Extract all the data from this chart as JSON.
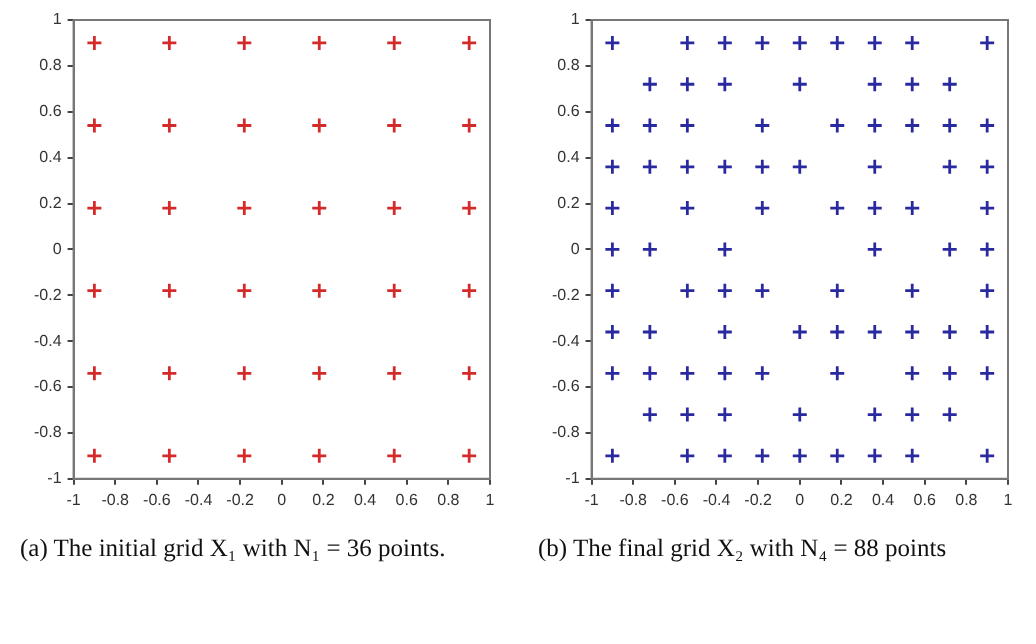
{
  "chart_data": [
    {
      "type": "scatter",
      "annotations": [
        "(a) The initial grid X₁ with N₁ = 36 points."
      ],
      "marker": "cross",
      "grid": false,
      "xlim": [
        -1,
        1
      ],
      "ylim": [
        -1,
        1
      ],
      "xticks": [
        -1,
        -0.8,
        -0.6,
        -0.4,
        -0.2,
        0,
        0.2,
        0.4,
        0.6,
        0.8,
        1
      ],
      "yticks": [
        -1,
        -0.8,
        -0.6,
        -0.4,
        -0.2,
        0,
        0.2,
        0.4,
        0.6,
        0.8,
        1
      ],
      "series": [
        {
          "color": "#d42a2a",
          "x": [
            -0.9,
            -0.54,
            -0.18,
            0.18,
            0.54,
            0.9,
            -0.9,
            -0.54,
            -0.18,
            0.18,
            0.54,
            0.9,
            -0.9,
            -0.54,
            -0.18,
            0.18,
            0.54,
            0.9,
            -0.9,
            -0.54,
            -0.18,
            0.18,
            0.54,
            0.9,
            -0.9,
            -0.54,
            -0.18,
            0.18,
            0.54,
            0.9,
            -0.9,
            -0.54,
            -0.18,
            0.18,
            0.54,
            0.9
          ],
          "values": [
            0.9,
            0.9,
            0.9,
            0.9,
            0.9,
            0.9,
            0.54,
            0.54,
            0.54,
            0.54,
            0.54,
            0.54,
            0.18,
            0.18,
            0.18,
            0.18,
            0.18,
            0.18,
            -0.18,
            -0.18,
            -0.18,
            -0.18,
            -0.18,
            -0.18,
            -0.54,
            -0.54,
            -0.54,
            -0.54,
            -0.54,
            -0.54,
            -0.9,
            -0.9,
            -0.9,
            -0.9,
            -0.9,
            -0.9
          ]
        }
      ]
    },
    {
      "type": "scatter",
      "annotations": [
        "(b) The final grid X₂ with N₄ = 88 points"
      ],
      "marker": "cross",
      "grid": false,
      "xlim": [
        -1,
        1
      ],
      "ylim": [
        -1,
        1
      ],
      "xticks": [
        -1,
        -0.8,
        -0.6,
        -0.4,
        -0.2,
        0,
        0.2,
        0.4,
        0.6,
        0.8,
        1
      ],
      "yticks": [
        -1,
        -0.8,
        -0.6,
        -0.4,
        -0.2,
        0,
        0.2,
        0.4,
        0.6,
        0.8,
        1
      ],
      "series": [
        {
          "color": "#2a2aa0",
          "x": [
            -0.9,
            -0.54,
            -0.36,
            -0.18,
            0,
            0.18,
            0.36,
            0.54,
            0.9,
            -0.72,
            -0.54,
            -0.36,
            0,
            0.36,
            0.54,
            0.72,
            -0.9,
            -0.72,
            -0.54,
            -0.18,
            0.18,
            0.36,
            0.54,
            0.72,
            0.9,
            -0.9,
            -0.72,
            -0.54,
            -0.36,
            -0.18,
            0,
            0.36,
            0.72,
            0.9,
            -0.9,
            -0.54,
            -0.18,
            0.18,
            0.36,
            0.54,
            0.9,
            -0.9,
            -0.72,
            -0.36,
            0.36,
            0.72,
            0.9,
            -0.9,
            -0.54,
            -0.36,
            -0.18,
            0.18,
            0.54,
            0.9,
            -0.9,
            -0.72,
            -0.36,
            0,
            0.18,
            0.36,
            0.54,
            0.72,
            0.9,
            -0.9,
            -0.72,
            -0.54,
            -0.36,
            -0.18,
            0.18,
            0.54,
            0.72,
            0.9,
            -0.72,
            -0.54,
            -0.36,
            0,
            0.36,
            0.54,
            0.72,
            -0.9,
            -0.54,
            -0.36,
            -0.18,
            0,
            0.18,
            0.36,
            0.54,
            0.9
          ],
          "values": [
            0.9,
            0.9,
            0.9,
            0.9,
            0.9,
            0.9,
            0.9,
            0.9,
            0.9,
            0.72,
            0.72,
            0.72,
            0.72,
            0.72,
            0.72,
            0.72,
            0.54,
            0.54,
            0.54,
            0.54,
            0.54,
            0.54,
            0.54,
            0.54,
            0.54,
            0.36,
            0.36,
            0.36,
            0.36,
            0.36,
            0.36,
            0.36,
            0.36,
            0.36,
            0.18,
            0.18,
            0.18,
            0.18,
            0.18,
            0.18,
            0.18,
            0,
            0,
            0,
            0,
            0,
            0,
            -0.18,
            -0.18,
            -0.18,
            -0.18,
            -0.18,
            -0.18,
            -0.18,
            -0.36,
            -0.36,
            -0.36,
            -0.36,
            -0.36,
            -0.36,
            -0.36,
            -0.36,
            -0.36,
            -0.54,
            -0.54,
            -0.54,
            -0.54,
            -0.54,
            -0.54,
            -0.54,
            -0.54,
            -0.54,
            -0.72,
            -0.72,
            -0.72,
            -0.72,
            -0.72,
            -0.72,
            -0.72,
            -0.9,
            -0.9,
            -0.9,
            -0.9,
            -0.9,
            -0.9,
            -0.9,
            -0.9,
            -0.9
          ]
        }
      ]
    }
  ]
}
